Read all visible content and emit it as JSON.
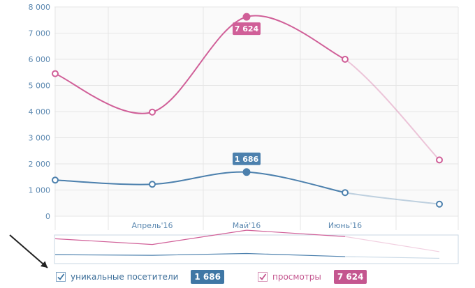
{
  "chart_data": {
    "type": "line",
    "x": [
      "",
      "Апрель'16",
      "Май'16",
      "Июнь'16",
      ""
    ],
    "ylim": [
      0,
      8000
    ],
    "yticks": [
      "8 000",
      "7 000",
      "6 000",
      "5 000",
      "4 000",
      "3 000",
      "2 000",
      "1 000",
      "0"
    ],
    "ytick_values": [
      8000,
      7000,
      6000,
      5000,
      4000,
      3000,
      2000,
      1000,
      0
    ],
    "grid": true,
    "series": [
      {
        "key": "uniques",
        "name": "уникальные посетители",
        "color": "#4c80ad",
        "values": [
          1380,
          1220,
          1686,
          900,
          460
        ],
        "highlight_index": 2,
        "highlight_label": "1 686"
      },
      {
        "key": "views",
        "name": "просмотры",
        "color": "#d05f98",
        "values": [
          5450,
          3980,
          7624,
          6000,
          2150
        ],
        "highlight_index": 2,
        "highlight_label": "7 624"
      }
    ]
  },
  "legend": {
    "uniques": {
      "label": "уникальные посетители",
      "value": "1 686",
      "checked": true
    },
    "views": {
      "label": "просмотры",
      "value": "7 624",
      "checked": true
    }
  }
}
